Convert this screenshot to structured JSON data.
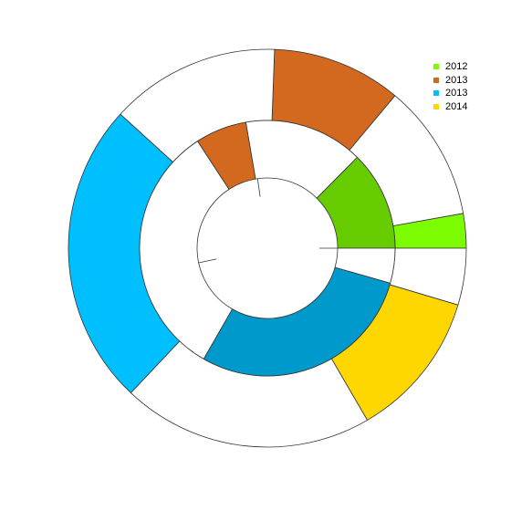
{
  "chart_data": {
    "type": "pie",
    "subtype": "multi-ring donut",
    "title": "",
    "rings": [
      {
        "name": "",
        "slices": [
          {
            "value": 0.028,
            "color": "#7CFC00"
          },
          {
            "value": 0.111,
            "color": "#FFFFFF"
          },
          {
            "value": 0.105,
            "color": "#D2691E"
          },
          {
            "value": 0.138,
            "color": "#FFFFFF"
          },
          {
            "value": 0.247,
            "color": "#00BFFF"
          },
          {
            "value": 0.204,
            "color": "#FFFFFF"
          },
          {
            "value": 0.12,
            "color": "#FFD700"
          },
          {
            "value": 0.046,
            "color": "#FFFFFF"
          }
        ]
      },
      {
        "name": "",
        "slices": [
          {
            "value": 0.126,
            "color": "#66CC00"
          },
          {
            "value": 0.151,
            "color": "#FFFFFF"
          },
          {
            "value": 0.065,
            "color": "#D2691E"
          },
          {
            "value": 0.325,
            "color": "#FFFFFF"
          },
          {
            "value": 0.289,
            "color": "#0099CC"
          },
          {
            "value": 0.044,
            "color": "#FFFFFF"
          }
        ]
      }
    ],
    "legend": {
      "position": "top-right",
      "items": [
        {
          "label": "2012",
          "color": "#7CFC00"
        },
        {
          "label": "2013",
          "color": "#D2691E"
        },
        {
          "label": "2013",
          "color": "#00BFFF"
        },
        {
          "label": "2014",
          "color": "#FFD700"
        }
      ]
    },
    "stroke_color": "#333333",
    "grid": false
  }
}
